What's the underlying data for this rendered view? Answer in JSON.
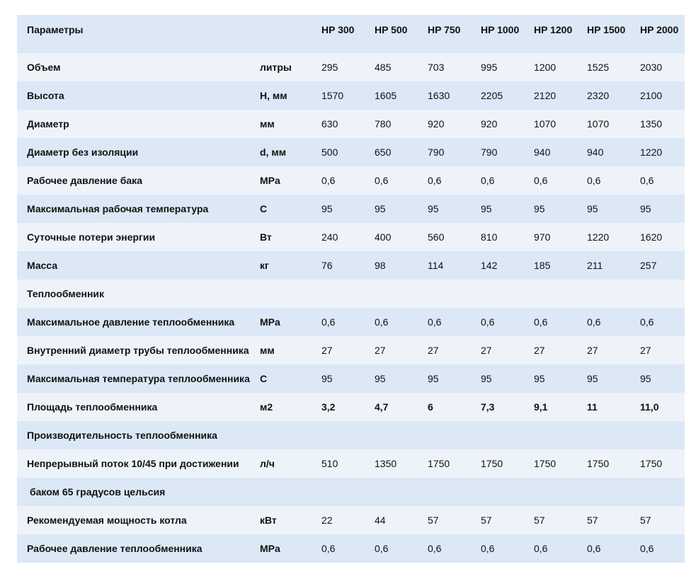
{
  "header": {
    "param_label": "Параметры",
    "unit_label": "",
    "models": [
      "HP 300",
      "HP 500",
      "HP 750",
      "HP 1000",
      "HP 1200",
      "HP 1500",
      "HP 2000"
    ]
  },
  "rows": [
    {
      "param": "Объем",
      "unit": "литры",
      "values": [
        "295",
        "485",
        "703",
        "995",
        "1200",
        "1525",
        "2030"
      ]
    },
    {
      "param": "Высота",
      "unit": "Н, мм",
      "values": [
        "1570",
        "1605",
        "1630",
        "2205",
        "2120",
        "2320",
        "2100"
      ]
    },
    {
      "param": "Диаметр",
      "unit": "мм",
      "values": [
        "630",
        "780",
        "920",
        "920",
        "1070",
        "1070",
        "1350"
      ]
    },
    {
      "param": "Диаметр без изоляции",
      "unit": "d, мм",
      "values": [
        "500",
        "650",
        "790",
        "790",
        "940",
        "940",
        "1220"
      ]
    },
    {
      "param": "Рабочее давление бака",
      "unit": "MPa",
      "values": [
        "0,6",
        "0,6",
        "0,6",
        "0,6",
        "0,6",
        "0,6",
        "0,6"
      ]
    },
    {
      "param": "Максимальная рабочая температура",
      "unit": "С",
      "values": [
        "95",
        "95",
        "95",
        "95",
        "95",
        "95",
        "95"
      ]
    },
    {
      "param": "Суточные потери энергии",
      "unit": "Вт",
      "values": [
        "240",
        "400",
        "560",
        "810",
        "970",
        "1220",
        "1620"
      ]
    },
    {
      "param": "Масса",
      "unit": "кг",
      "values": [
        "76",
        "98",
        "114",
        "142",
        "185",
        "211",
        "257"
      ]
    },
    {
      "param": "Теплообменник",
      "unit": "",
      "values": [
        "",
        "",
        "",
        "",
        "",
        "",
        ""
      ]
    },
    {
      "param": "Максимальное давление теплообменника",
      "unit": "MPa",
      "values": [
        "0,6",
        "0,6",
        "0,6",
        "0,6",
        "0,6",
        "0,6",
        "0,6"
      ]
    },
    {
      "param": "Внутренний диаметр трубы теплообменника",
      "unit": "мм",
      "values": [
        "27",
        "27",
        "27",
        "27",
        "27",
        "27",
        "27"
      ]
    },
    {
      "param": "Максимальная температура теплообменника",
      "unit": "С",
      "values": [
        "95",
        "95",
        "95",
        "95",
        "95",
        "95",
        "95"
      ]
    },
    {
      "param": "Площадь теплообменника",
      "unit": "м2",
      "values": [
        "3,2",
        "4,7",
        "6",
        "7,3",
        "9,1",
        "11",
        "11,0"
      ]
    },
    {
      "param": "Производительность теплообменника",
      "unit": "",
      "values": [
        "",
        "",
        "",
        "",
        "",
        "",
        ""
      ]
    },
    {
      "param": "Непрерывный поток 10/45 при достижении",
      "unit": "л/ч",
      "values": [
        "510",
        "1350",
        "1750",
        "1750",
        "1750",
        "1750",
        "1750"
      ]
    },
    {
      "param": "баком 65 градусов цельсия",
      "unit": "",
      "values": [
        "",
        "",
        "",
        "",
        "",
        "",
        ""
      ]
    },
    {
      "param": "Рекомендуемая мощность котла",
      "unit": "кВт",
      "values": [
        "22",
        "44",
        "57",
        "57",
        "57",
        "57",
        "57"
      ]
    },
    {
      "param": "Рабочее давление теплообменника",
      "unit": "MPa",
      "values": [
        "0,6",
        "0,6",
        "0,6",
        "0,6",
        "0,6",
        "0,6",
        "0,6"
      ]
    }
  ],
  "colors": {
    "row_dark": "#dce8f6",
    "row_light": "#eef3fa",
    "text": "#111111"
  }
}
